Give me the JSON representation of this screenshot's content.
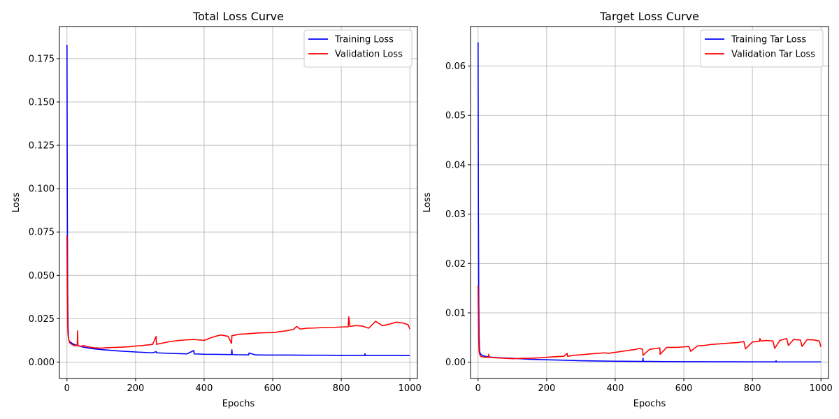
{
  "chart_data": [
    {
      "type": "line",
      "title": "Total Loss Curve",
      "xlabel": "Epochs",
      "ylabel": "Loss",
      "xlim": [
        -22,
        1022
      ],
      "ylim": [
        -0.0095,
        0.1935
      ],
      "xticks": [
        "0",
        "200",
        "400",
        "600",
        "800",
        "1000"
      ],
      "yticks": [
        "0.000",
        "0.025",
        "0.050",
        "0.075",
        "0.100",
        "0.125",
        "0.150",
        "0.175"
      ],
      "grid": true,
      "legend_position": "top-right",
      "series": [
        {
          "name": "Training Loss",
          "color": "#0000ff",
          "x": [
            0,
            1,
            2,
            3,
            4,
            5,
            7,
            10,
            15,
            20,
            30,
            40,
            50,
            70,
            100,
            150,
            200,
            250,
            260,
            261,
            300,
            350,
            370,
            371,
            400,
            450,
            480,
            481,
            482,
            500,
            530,
            531,
            550,
            600,
            650,
            700,
            750,
            800,
            850,
            868,
            869,
            870,
            900,
            950,
            1000
          ],
          "y": [
            0.183,
            0.09,
            0.04,
            0.022,
            0.016,
            0.013,
            0.012,
            0.0115,
            0.0108,
            0.0102,
            0.0096,
            0.009,
            0.0085,
            0.0078,
            0.0072,
            0.0064,
            0.0058,
            0.0053,
            0.006,
            0.0053,
            0.005,
            0.0047,
            0.0066,
            0.0047,
            0.0045,
            0.0044,
            0.0043,
            0.0071,
            0.0043,
            0.0042,
            0.0041,
            0.0052,
            0.0041,
            0.004,
            0.004,
            0.0039,
            0.0039,
            0.0038,
            0.0038,
            0.0038,
            0.0048,
            0.0038,
            0.0038,
            0.0038,
            0.0037
          ]
        },
        {
          "name": "Validation Loss",
          "color": "#ff0000",
          "x": [
            0,
            1,
            2,
            3,
            5,
            8,
            12,
            20,
            30,
            31,
            32,
            40,
            50,
            60,
            80,
            100,
            120,
            150,
            180,
            200,
            220,
            250,
            260,
            261,
            280,
            300,
            330,
            350,
            370,
            380,
            400,
            420,
            440,
            450,
            470,
            480,
            481,
            490,
            500,
            520,
            540,
            560,
            580,
            600,
            610,
            620,
            640,
            660,
            670,
            680,
            700,
            720,
            740,
            760,
            780,
            800,
            820,
            822,
            825,
            840,
            860,
            880,
            900,
            920,
            940,
            960,
            980,
            995,
            1000
          ],
          "y": [
            0.073,
            0.04,
            0.022,
            0.016,
            0.013,
            0.011,
            0.0105,
            0.0095,
            0.0095,
            0.018,
            0.0095,
            0.009,
            0.0095,
            0.0088,
            0.0082,
            0.008,
            0.0083,
            0.0085,
            0.0088,
            0.0092,
            0.0095,
            0.0102,
            0.0148,
            0.0102,
            0.011,
            0.0118,
            0.0125,
            0.0128,
            0.013,
            0.0128,
            0.0125,
            0.014,
            0.0152,
            0.0156,
            0.0148,
            0.0108,
            0.0152,
            0.0155,
            0.016,
            0.0162,
            0.0165,
            0.0168,
            0.0169,
            0.017,
            0.0172,
            0.0175,
            0.018,
            0.0188,
            0.0205,
            0.019,
            0.0195,
            0.0196,
            0.0198,
            0.0199,
            0.02,
            0.0202,
            0.0203,
            0.026,
            0.0205,
            0.021,
            0.0208,
            0.0195,
            0.0235,
            0.021,
            0.0218,
            0.023,
            0.0225,
            0.0215,
            0.019
          ]
        }
      ]
    },
    {
      "type": "line",
      "title": "Target Loss Curve",
      "xlabel": "Epochs",
      "ylabel": "Loss",
      "xlim": [
        -22,
        1022
      ],
      "ylim": [
        -0.0033,
        0.068
      ],
      "xticks": [
        "0",
        "200",
        "400",
        "600",
        "800",
        "1000"
      ],
      "yticks": [
        "0.00",
        "0.01",
        "0.02",
        "0.03",
        "0.04",
        "0.05",
        "0.06"
      ],
      "grid": true,
      "legend_position": "top-right",
      "series": [
        {
          "name": "Training Tar Loss",
          "color": "#0000ff",
          "x": [
            0,
            1,
            2,
            3,
            4,
            5,
            8,
            12,
            20,
            40,
            60,
            100,
            150,
            200,
            250,
            300,
            350,
            400,
            450,
            480,
            481,
            482,
            500,
            550,
            600,
            650,
            700,
            750,
            800,
            850,
            868,
            869,
            870,
            900,
            950,
            1000
          ],
          "y": [
            0.0648,
            0.03,
            0.012,
            0.005,
            0.0028,
            0.002,
            0.0016,
            0.0014,
            0.0012,
            0.001,
            0.0009,
            0.0008,
            0.0006,
            0.0005,
            0.0004,
            0.0003,
            0.00025,
            0.0002,
            0.00018,
            0.00016,
            0.0008,
            0.00016,
            0.00015,
            0.00012,
            0.0001,
            0.0001,
            8e-05,
            8e-05,
            7e-05,
            7e-05,
            7e-05,
            0.0003,
            7e-05,
            6e-05,
            6e-05,
            6e-05
          ]
        },
        {
          "name": "Validation Tar Loss",
          "color": "#ff0000",
          "x": [
            0,
            1,
            2,
            3,
            5,
            8,
            12,
            20,
            30,
            31,
            32,
            50,
            80,
            100,
            130,
            150,
            180,
            200,
            220,
            250,
            260,
            261,
            280,
            300,
            330,
            350,
            370,
            380,
            400,
            420,
            440,
            460,
            470,
            480,
            481,
            500,
            520,
            530,
            531,
            550,
            580,
            600,
            615,
            620,
            640,
            660,
            680,
            700,
            720,
            740,
            760,
            775,
            780,
            800,
            820,
            822,
            825,
            840,
            860,
            865,
            880,
            900,
            905,
            920,
            940,
            945,
            960,
            980,
            995,
            1000
          ],
          "y": [
            0.0155,
            0.008,
            0.004,
            0.0022,
            0.0015,
            0.0012,
            0.0011,
            0.001,
            0.001,
            0.0016,
            0.001,
            0.0009,
            0.0008,
            0.0007,
            0.0008,
            0.0008,
            0.0009,
            0.001,
            0.0011,
            0.0012,
            0.0018,
            0.0012,
            0.0014,
            0.0015,
            0.0017,
            0.0018,
            0.0019,
            0.0018,
            0.002,
            0.0022,
            0.0024,
            0.0026,
            0.0028,
            0.0026,
            0.0014,
            0.0026,
            0.0028,
            0.0029,
            0.0016,
            0.003,
            0.003,
            0.0031,
            0.0032,
            0.0022,
            0.0033,
            0.0034,
            0.0036,
            0.0037,
            0.0038,
            0.0039,
            0.004,
            0.0042,
            0.0027,
            0.0041,
            0.0042,
            0.0048,
            0.0043,
            0.0044,
            0.0043,
            0.0028,
            0.0044,
            0.0048,
            0.0034,
            0.0046,
            0.0045,
            0.0032,
            0.0046,
            0.0045,
            0.0043,
            0.0031
          ]
        }
      ]
    }
  ]
}
